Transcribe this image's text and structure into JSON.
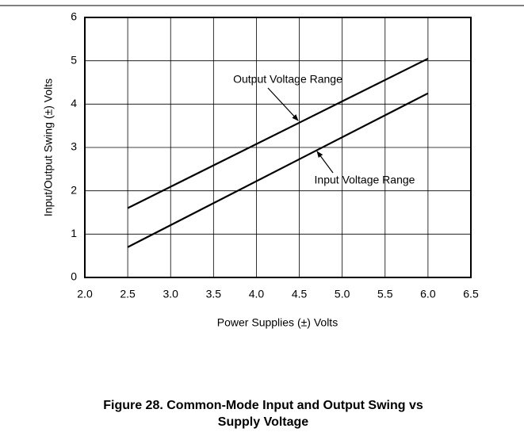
{
  "chart_data": {
    "type": "line",
    "x": [
      2.5,
      6.0
    ],
    "series": [
      {
        "name": "Output Voltage Range",
        "color": "#000000",
        "values": [
          1.6,
          5.05
        ]
      },
      {
        "name": "Input Voltage Range",
        "color": "#000000",
        "values": [
          0.7,
          4.25
        ]
      }
    ],
    "xlabel": "Power Supplies (±) Volts",
    "ylabel": "Input/Output Swing (±) Volts",
    "caption": [
      "Figure 28. Common-Mode Input and Output Swing vs",
      "Supply Voltage"
    ],
    "xlim": [
      2.0,
      6.5
    ],
    "ylim": [
      0,
      6
    ],
    "xticks": [
      {
        "value": 2.0,
        "label": "2.0"
      },
      {
        "value": 2.5,
        "label": "2.5"
      },
      {
        "value": 3.0,
        "label": "3.0"
      },
      {
        "value": 3.5,
        "label": "3.5"
      },
      {
        "value": 4.0,
        "label": "4.0"
      },
      {
        "value": 4.5,
        "label": "4.5"
      },
      {
        "value": 5.0,
        "label": "5.0"
      },
      {
        "value": 5.5,
        "label": "5.5"
      },
      {
        "value": 6.0,
        "label": "6.0"
      },
      {
        "value": 6.5,
        "label": "6.5"
      }
    ],
    "yticks": [
      0,
      1,
      2,
      3,
      4,
      5,
      6
    ],
    "grid": true
  }
}
